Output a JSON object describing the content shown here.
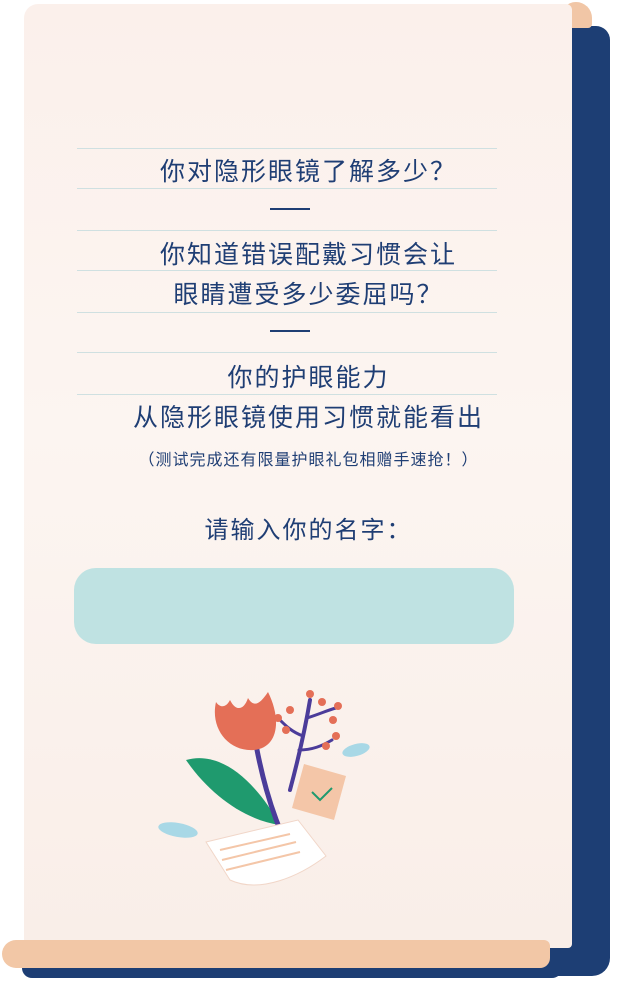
{
  "intro": {
    "line1": "你对隐形眼镜了解多少？",
    "line2": "你知道错误配戴习惯会让",
    "line3": "眼睛遭受多少委屈吗？",
    "line4": "你的护眼能力",
    "line5": "从隐形眼镜使用习惯就能看出",
    "note": "（测试完成还有限量护眼礼包相赠手速抢！）"
  },
  "form": {
    "label": "请输入你的名字：",
    "name_value": "",
    "name_placeholder": ""
  },
  "colors": {
    "text": "#1f3e74",
    "paper": "#fbf0eb",
    "input": "#bfe2e2",
    "accent_navy": "#1d3e74",
    "accent_peach": "#f2c7a6"
  },
  "illustration": {
    "icon": "tulip-berries-letter-illustration"
  }
}
